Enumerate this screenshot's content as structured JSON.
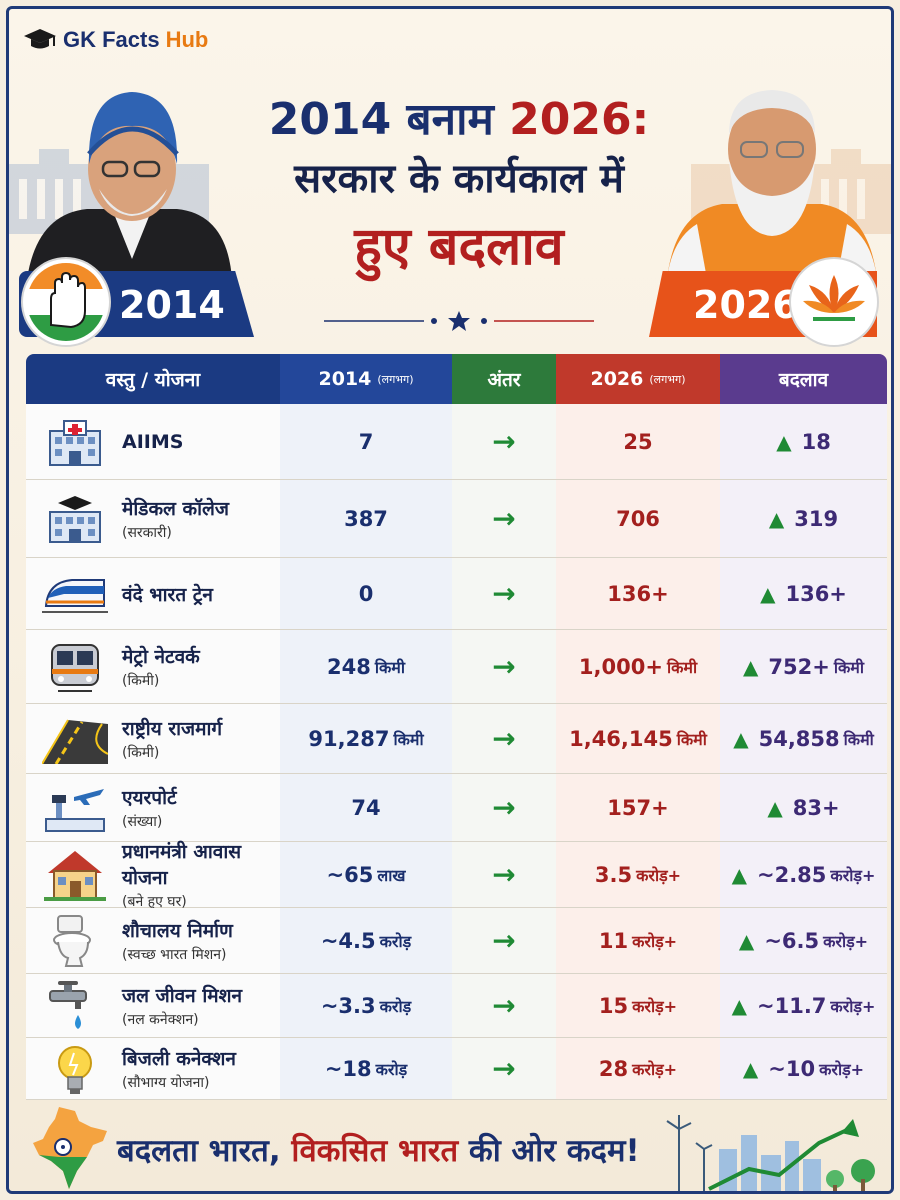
{
  "brand": {
    "part1": "GK Facts",
    "part2": "Hub",
    "icon": "graduation-cap-icon"
  },
  "title": {
    "line1_a": "2014 बनाम ",
    "line1_b": "2026:",
    "line2": "सरकार के कार्यकाल में",
    "line3": "हुए बदलाव"
  },
  "years": {
    "left": "2014",
    "right": "2026"
  },
  "colors": {
    "navy": "#1b3a82",
    "saffron": "#e7531a",
    "green": "#1f8a34",
    "red": "#b21f1f",
    "purple": "#5a3b8e"
  },
  "table": {
    "headers": {
      "item": "वस्तु / योजना",
      "y2014": "2014",
      "y2014_note": "(लगभग)",
      "diff": "अंतर",
      "y2026": "2026",
      "y2026_note": "(लगभग)",
      "change": "बदलाव"
    },
    "rows": [
      {
        "icon": "hospital-icon",
        "name": "AIIMS",
        "sub": "",
        "v2014": "7",
        "u2014": "",
        "v2026": "25",
        "u2026": "",
        "change": "18",
        "uchange": ""
      },
      {
        "icon": "college-icon",
        "name": "मेडिकल कॉलेज",
        "sub": "(सरकारी)",
        "v2014": "387",
        "u2014": "",
        "v2026": "706",
        "u2026": "",
        "change": "319",
        "uchange": ""
      },
      {
        "icon": "train-icon",
        "name": "वंदे भारत ट्रेन",
        "sub": "",
        "v2014": "0",
        "u2014": "",
        "v2026": "136+",
        "u2026": "",
        "change": "136+",
        "uchange": ""
      },
      {
        "icon": "metro-icon",
        "name": "मेट्रो नेटवर्क",
        "sub": "(किमी)",
        "v2014": "248",
        "u2014": "किमी",
        "v2026": "1,000+",
        "u2026": "किमी",
        "change": "752+",
        "uchange": "किमी"
      },
      {
        "icon": "highway-icon",
        "name": "राष्ट्रीय राजमार्ग",
        "sub": "(किमी)",
        "v2014": "91,287",
        "u2014": "किमी",
        "v2026": "1,46,145",
        "u2026": "किमी",
        "change": "54,858",
        "uchange": "किमी"
      },
      {
        "icon": "airport-icon",
        "name": "एयरपोर्ट",
        "sub": "(संख्या)",
        "v2014": "74",
        "u2014": "",
        "v2026": "157+",
        "u2026": "",
        "change": "83+",
        "uchange": ""
      },
      {
        "icon": "house-icon",
        "name": "प्रधानमंत्री आवास योजना",
        "sub": "(बने हुए घर)",
        "v2014": "~65",
        "u2014": "लाख",
        "v2026": "3.5",
        "u2026": "करोड़+",
        "change": "~2.85",
        "uchange": "करोड़+"
      },
      {
        "icon": "toilet-icon",
        "name": "शौचालय निर्माण",
        "sub": "(स्वच्छ भारत मिशन)",
        "v2014": "~4.5",
        "u2014": "करोड़",
        "v2026": "11",
        "u2026": "करोड़+",
        "change": "~6.5",
        "uchange": "करोड़+"
      },
      {
        "icon": "tap-icon",
        "name": "जल जीवन मिशन",
        "sub": "(नल कनेक्शन)",
        "v2014": "~3.3",
        "u2014": "करोड़",
        "v2026": "15",
        "u2026": "करोड़+",
        "change": "~11.7",
        "uchange": "करोड़+"
      },
      {
        "icon": "bulb-icon",
        "name": "बिजली कनेक्शन",
        "sub": "(सौभाग्य योजना)",
        "v2014": "~18",
        "u2014": "करोड़",
        "v2026": "28",
        "u2026": "करोड़+",
        "change": "~10",
        "uchange": "करोड़+"
      }
    ]
  },
  "footer": {
    "part1": "बदलता भारत, ",
    "part2": "विकसित भारत",
    "part3": " की ओर कदम!"
  }
}
